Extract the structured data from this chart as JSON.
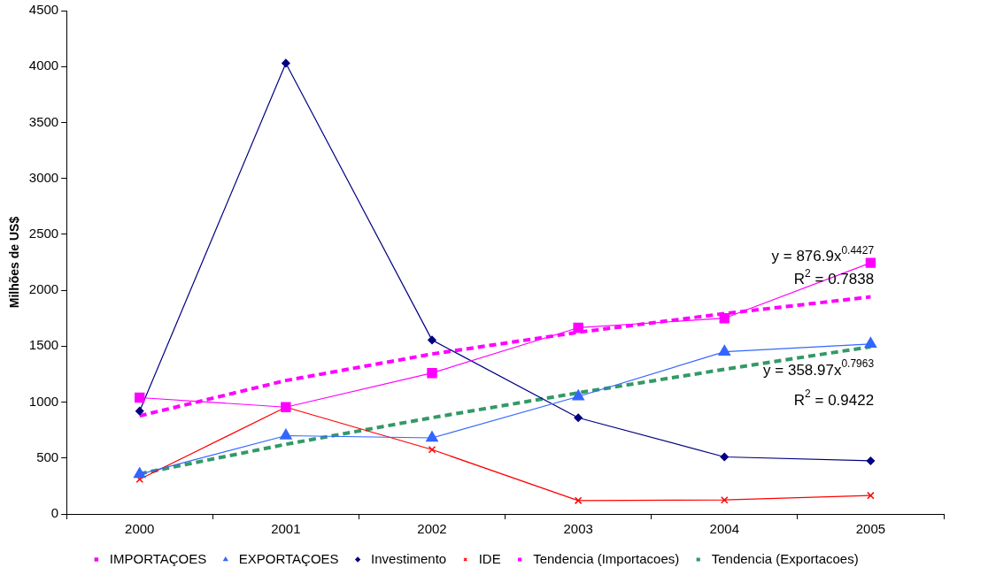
{
  "chart_data": {
    "type": "line",
    "ylabel": "Milhões de US$",
    "categories": [
      "2000",
      "2001",
      "2002",
      "2003",
      "2004",
      "2005"
    ],
    "series": [
      {
        "name": "IMPORTAÇOES",
        "color": "#ff00ff",
        "marker": "square",
        "values": [
          1040,
          955,
          1260,
          1665,
          1750,
          2245
        ]
      },
      {
        "name": "EXPORTAÇOES",
        "color": "#3366ff",
        "marker": "triangle",
        "values": [
          355,
          700,
          680,
          1050,
          1450,
          1520
        ]
      },
      {
        "name": "Investimento",
        "color": "#000080",
        "marker": "diamond",
        "values": [
          920,
          4030,
          1555,
          860,
          510,
          475
        ]
      },
      {
        "name": "IDE",
        "color": "#ff0000",
        "marker": "cross",
        "values": [
          310,
          955,
          575,
          120,
          125,
          165
        ]
      },
      {
        "name": "Tendencia (Importacoes)",
        "color": "#ff00ff",
        "marker": "none",
        "line_style": "dashed",
        "values": [
          877,
          1193,
          1430,
          1624,
          1791,
          1941
        ]
      },
      {
        "name": "Tendencia (Exportacoes)",
        "color": "#339966",
        "marker": "none",
        "line_style": "dashed",
        "values": [
          359,
          623,
          861,
          1083,
          1293,
          1495
        ]
      }
    ],
    "ylim": [
      0,
      4500
    ],
    "yticks": [
      0,
      500,
      1000,
      1500,
      2000,
      2500,
      3000,
      3500,
      4000,
      4500
    ],
    "grid": false,
    "legend": "bottom",
    "annotations": [
      "y = 876.9x$^{0.4427}$",
      "R$^{2}$ = 0.7838",
      "y = 358.97x$^{0.7963}$",
      "R$^{2}$ = 0.9422"
    ]
  }
}
